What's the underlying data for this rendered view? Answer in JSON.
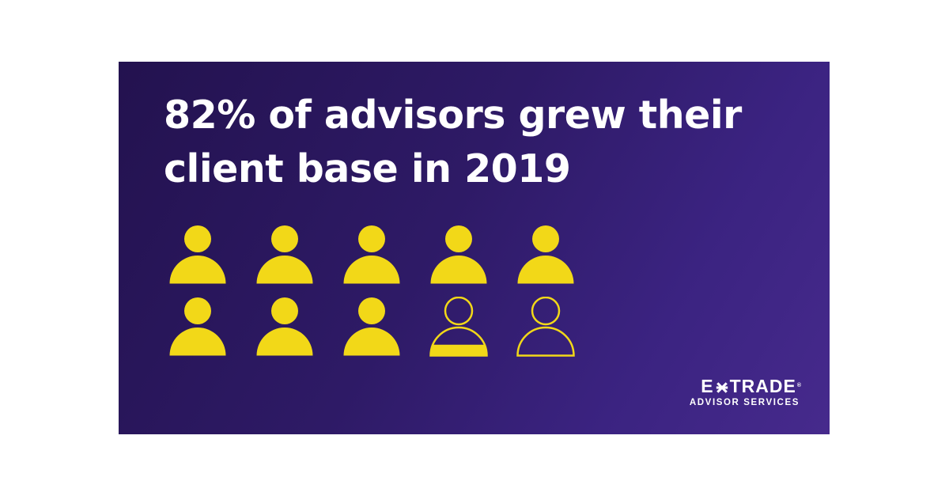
{
  "headline": {
    "line1": "82% of advisors grew their",
    "line2": "client base in 2019"
  },
  "stat": {
    "percent": 82,
    "icons_total": 10,
    "icon_fill_fractions": [
      1,
      1,
      1,
      1,
      1,
      1,
      1,
      1,
      0.2,
      0
    ]
  },
  "logo": {
    "brand_left": "E",
    "brand_right": "TRADE",
    "registered": "®",
    "subtitle": "ADVISOR SERVICES"
  },
  "colors": {
    "background": "#2e1a66",
    "accent_yellow": "#f2d818",
    "text": "#ffffff"
  },
  "icons": {
    "person": "person-icon",
    "brand_mark": "star-icon"
  }
}
